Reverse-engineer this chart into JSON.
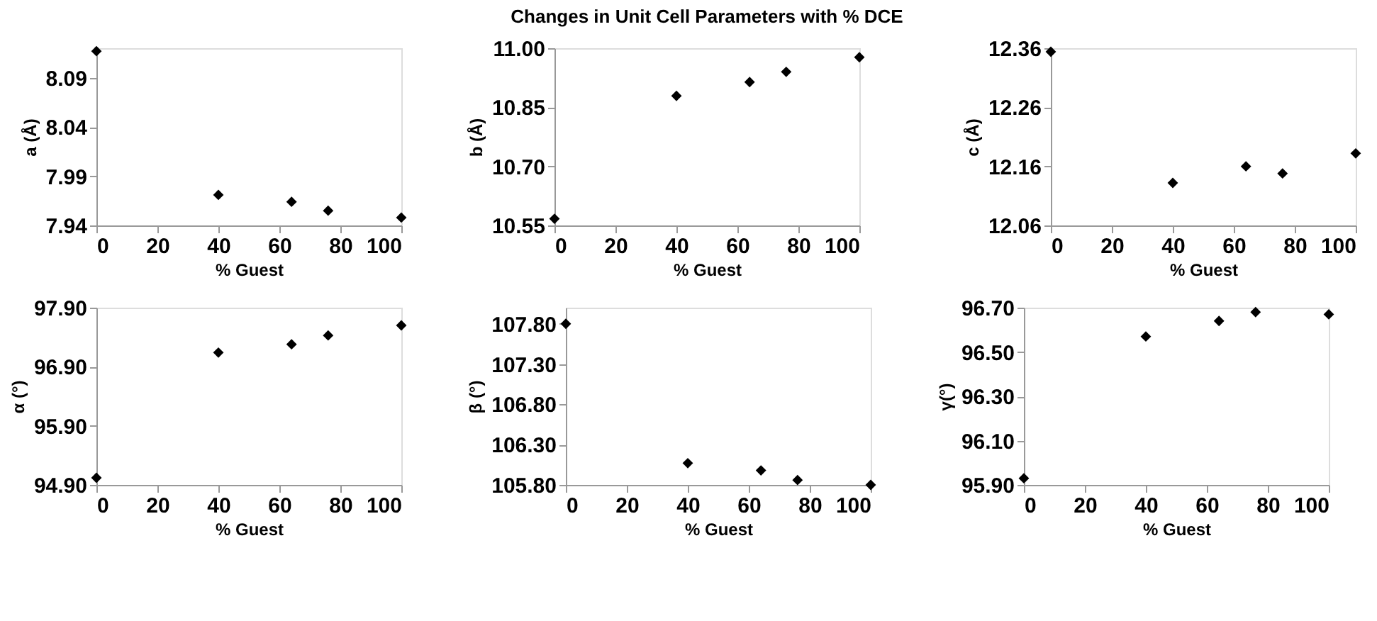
{
  "chart_data": [
    {
      "type": "scatter",
      "xlabel": "% Guest",
      "ylabel": "a (Å)",
      "x": [
        0,
        40,
        64,
        76,
        100
      ],
      "values": [
        8.117,
        7.971,
        7.964,
        7.955,
        7.948
      ],
      "color": "#000000",
      "marker": "diamond",
      "xlim": [
        0,
        100
      ],
      "xticks": [
        0,
        20,
        40,
        60,
        80,
        100
      ],
      "ylim": [
        7.94,
        8.12
      ],
      "yticks": [
        7.94,
        {
          "value": 7.99,
          "label": "7.99"
        },
        {
          "value": 8.04,
          "label": "8.04"
        },
        {
          "value": 8.09,
          "label": "8.09"
        }
      ]
    },
    {
      "type": "scatter",
      "title": "Changes in Unit Cell Parameters with % DCE",
      "xlabel": "% Guest",
      "ylabel": "b (Å)",
      "x": [
        0,
        40,
        64,
        76,
        100
      ],
      "values": [
        10.567,
        10.879,
        10.914,
        10.94,
        10.977
      ],
      "color": "#000000",
      "marker": "diamond",
      "xlim": [
        0,
        100
      ],
      "xticks": [
        0,
        20,
        40,
        60,
        80,
        100
      ],
      "ylim": [
        10.55,
        11.0
      ],
      "yticks": [
        {
          "value": 10.55,
          "label": "10.55"
        },
        {
          "value": 10.7,
          "label": "10.70"
        },
        {
          "value": 10.85,
          "label": "10.85"
        },
        {
          "value": 11.0,
          "label": "11.00"
        }
      ]
    },
    {
      "type": "scatter",
      "xlabel": "% Guest",
      "ylabel": "c (Å)",
      "x": [
        0,
        40,
        64,
        76,
        100
      ],
      "values": [
        12.354,
        12.132,
        12.16,
        12.148,
        12.182
      ],
      "color": "#000000",
      "marker": "diamond",
      "xlim": [
        0,
        100
      ],
      "xticks": [
        0,
        20,
        40,
        60,
        80,
        100
      ],
      "ylim": [
        12.06,
        12.36
      ],
      "yticks": [
        {
          "value": 12.06,
          "label": "12.06"
        },
        {
          "value": 12.16,
          "label": "12.16"
        },
        {
          "value": 12.26,
          "label": "12.26"
        },
        {
          "value": 12.36,
          "label": "12.36"
        }
      ]
    },
    {
      "type": "scatter",
      "xlabel": "% Guest",
      "ylabel": "α (°)",
      "x": [
        0,
        40,
        64,
        76,
        100
      ],
      "values": [
        95.02,
        97.14,
        97.28,
        97.43,
        97.6
      ],
      "color": "#000000",
      "marker": "diamond",
      "xlim": [
        0,
        100
      ],
      "xticks": [
        0,
        20,
        40,
        60,
        80,
        100
      ],
      "ylim": [
        94.9,
        97.9
      ],
      "yticks": [
        {
          "value": 94.9,
          "label": "94.90"
        },
        {
          "value": 95.9,
          "label": "95.90"
        },
        {
          "value": 96.9,
          "label": "96.90"
        },
        {
          "value": 97.9,
          "label": "97.90"
        }
      ]
    },
    {
      "type": "scatter",
      "xlabel": "% Guest",
      "ylabel": "β (°)",
      "x": [
        0,
        40,
        64,
        76,
        100
      ],
      "values": [
        107.8,
        106.07,
        105.98,
        105.86,
        105.8
      ],
      "color": "#000000",
      "marker": "diamond",
      "xlim": [
        0,
        100
      ],
      "xticks": [
        0,
        20,
        40,
        60,
        80,
        100
      ],
      "ylim": [
        105.8,
        108.0
      ],
      "yticks": [
        {
          "value": 105.8,
          "label": "105.80"
        },
        {
          "value": 106.3,
          "label": "106.30"
        },
        {
          "value": 106.8,
          "label": "106.80"
        },
        {
          "value": 107.3,
          "label": "107.30"
        },
        {
          "value": 107.8,
          "label": "107.80"
        }
      ]
    },
    {
      "type": "scatter",
      "xlabel": "% Guest",
      "ylabel": "γ(°)",
      "x": [
        0,
        40,
        64,
        76,
        100
      ],
      "values": [
        95.93,
        96.57,
        96.64,
        96.68,
        96.67
      ],
      "color": "#000000",
      "marker": "diamond",
      "xlim": [
        0,
        100
      ],
      "xticks": [
        0,
        20,
        40,
        60,
        80,
        100
      ],
      "ylim": [
        95.9,
        96.7
      ],
      "yticks": [
        {
          "value": 95.9,
          "label": "95.90"
        },
        {
          "value": 96.1,
          "label": "96.10"
        },
        {
          "value": 96.3,
          "label": "96.30"
        },
        {
          "value": 96.5,
          "label": "96.50"
        },
        {
          "value": 96.7,
          "label": "96.70"
        }
      ]
    }
  ]
}
